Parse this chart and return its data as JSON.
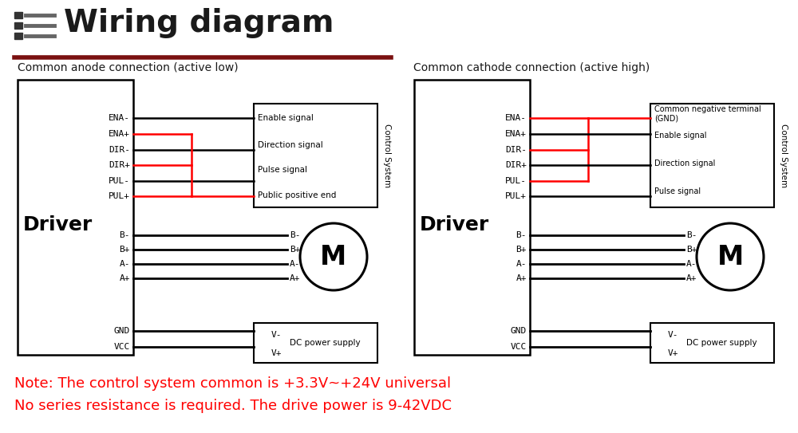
{
  "title": "Wiring diagram",
  "title_color": "#1a1a1a",
  "title_underline_color": "#7a1010",
  "bg_color": "#ffffff",
  "note_line1": "Note: The control system common is +3.3V~+24V universal",
  "note_line2": "No series resistance is required. The drive power is 9-42VDC",
  "note_color": "#ff0000",
  "left_subtitle": "Common anode connection (active low)",
  "right_subtitle": "Common cathode connection (active high)",
  "control_system_label": "Control System",
  "left_signals": [
    "Enable signal",
    "Direction signal",
    "Pulse signal",
    "Public positive end"
  ],
  "right_signals": [
    "Common negative terminal\n(GND)",
    "Enable signal",
    "Direction signal",
    "Pulse signal"
  ],
  "motor_pins": [
    "B-",
    "B+",
    "A-",
    "A+"
  ],
  "power_pins": [
    "GND",
    "VCC"
  ],
  "pin_labels": [
    "ENA-",
    "ENA+",
    "DIR-",
    "DIR+",
    "PUL-",
    "PUL+"
  ]
}
